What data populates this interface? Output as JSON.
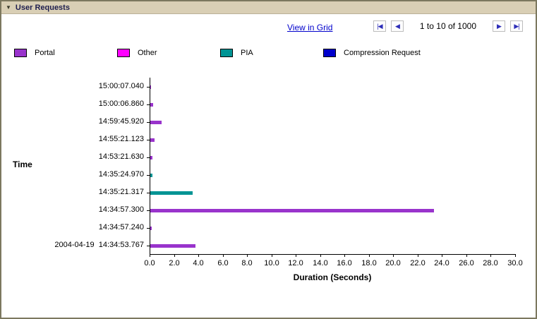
{
  "header": {
    "title": "User Requests",
    "collapse_icon": "▼"
  },
  "toolbar": {
    "view_in_grid_label": "View in Grid",
    "pagination": {
      "text": "1 to 10 of 1000",
      "first_icon": "|◀",
      "prev_icon": "◀",
      "next_icon": "▶",
      "last_icon": "▶|"
    }
  },
  "chart_data": {
    "type": "bar",
    "orientation": "horizontal",
    "title": "",
    "xlabel": "Duration (Seconds)",
    "ylabel": "Time",
    "xlim": [
      0,
      30
    ],
    "grid": false,
    "legend_position": "top",
    "xticks": [
      "0.0",
      "2.0",
      "4.0",
      "6.0",
      "8.0",
      "10.0",
      "12.0",
      "14.0",
      "16.0",
      "18.0",
      "20.0",
      "22.0",
      "24.0",
      "26.0",
      "28.0",
      "30.0"
    ],
    "categories": [
      "15:00:07.040",
      "15:00:06.860",
      "14:59:45.920",
      "14:55:21.123",
      "14:53:21.630",
      "14:35:24.970",
      "14:35:21.317",
      "14:34:57.300",
      "14:34:57.240",
      "2004-04-19  14:34:53.767"
    ],
    "bars": [
      {
        "category": "15:00:07.040",
        "value": 0.05,
        "series": "Portal"
      },
      {
        "category": "15:00:06.860",
        "value": 0.25,
        "series": "Portal"
      },
      {
        "category": "14:59:45.920",
        "value": 0.9,
        "series": "Portal"
      },
      {
        "category": "14:55:21.123",
        "value": 0.35,
        "series": "Portal"
      },
      {
        "category": "14:53:21.630",
        "value": 0.2,
        "series": "Portal"
      },
      {
        "category": "14:35:24.970",
        "value": 0.15,
        "series": "PIA"
      },
      {
        "category": "14:35:21.317",
        "value": 3.5,
        "series": "PIA"
      },
      {
        "category": "14:34:57.300",
        "value": 23.3,
        "series": "Portal"
      },
      {
        "category": "14:34:57.240",
        "value": 0.1,
        "series": "Portal"
      },
      {
        "category": "2004-04-19  14:34:53.767",
        "value": 3.7,
        "series": "Portal"
      }
    ],
    "legend": [
      {
        "name": "Portal",
        "color": "#9933CC"
      },
      {
        "name": "Other",
        "color": "#FF00FF"
      },
      {
        "name": "PIA",
        "color": "#009494"
      },
      {
        "name": "Compression Request",
        "color": "#0000CC"
      }
    ]
  }
}
